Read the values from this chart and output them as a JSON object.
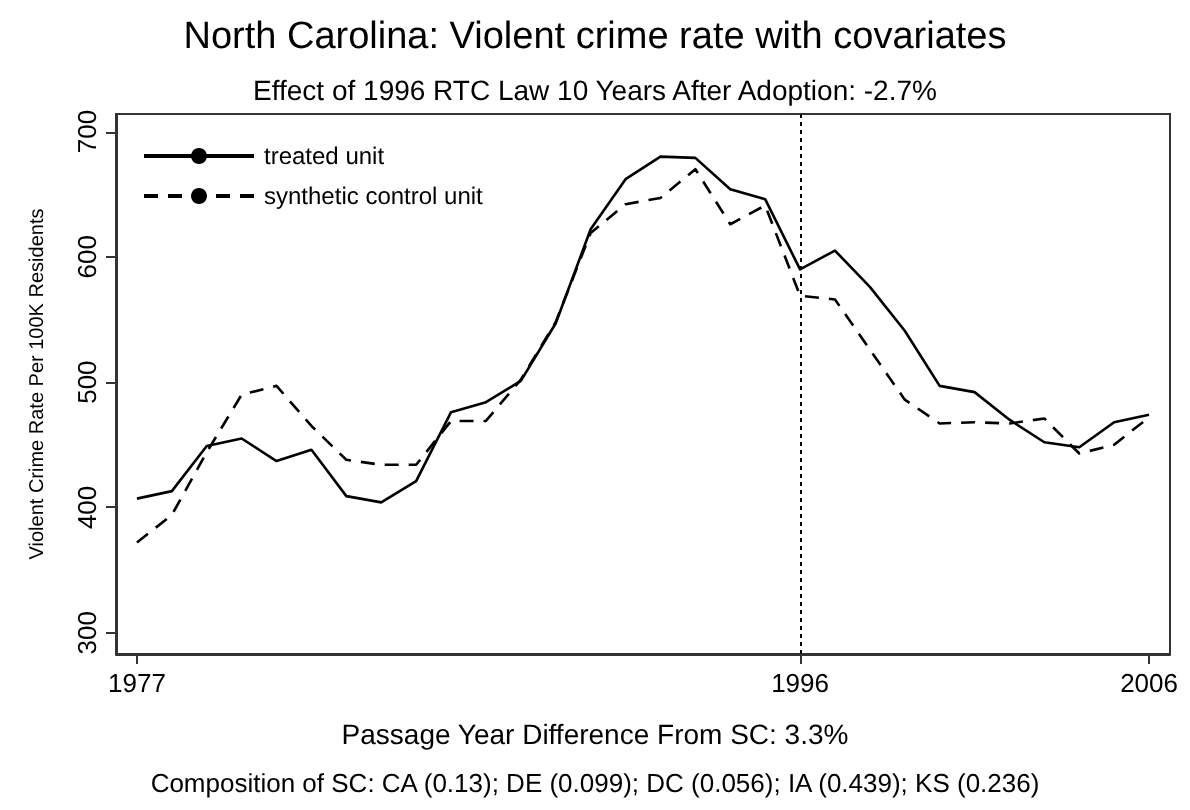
{
  "chart_data": {
    "type": "line",
    "title": "North Carolina: Violent crime rate with covariates",
    "subtitle": "Effect of 1996 RTC Law 10 Years After Adoption: -2.7%",
    "xlabel": "Passage Year Difference From SC: 3.3%",
    "ylabel": "Violent Crime Rate Per 100K Residents",
    "annotations": [
      "Composition of SC: CA (0.13); DE (0.099); DC (0.056); IA (0.439); KS (0.236)"
    ],
    "x": [
      1977,
      1978,
      1979,
      1980,
      1981,
      1982,
      1983,
      1984,
      1985,
      1986,
      1987,
      1988,
      1989,
      1990,
      1991,
      1992,
      1993,
      1994,
      1995,
      1996,
      1997,
      1998,
      1999,
      2000,
      2001,
      2002,
      2003,
      2004,
      2005,
      2006
    ],
    "series": [
      {
        "name": "treated unit",
        "color": "#000000",
        "line_style": "solid",
        "values": [
          407,
          413,
          449,
          455,
          437,
          446,
          409,
          404,
          421,
          476,
          484,
          501,
          547,
          622,
          662,
          680,
          679,
          654,
          646,
          590,
          605,
          576,
          541,
          497,
          492,
          470,
          452,
          448,
          468,
          474
        ]
      },
      {
        "name": "synthetic control unit",
        "color": "#000000",
        "line_style": "dashed",
        "values": [
          372,
          394,
          444,
          490,
          497,
          465,
          438,
          434,
          434,
          469,
          469,
          502,
          548,
          619,
          642,
          647,
          670,
          626,
          641,
          569,
          566,
          526,
          486,
          467,
          468,
          467,
          471,
          443,
          450,
          472
        ]
      }
    ],
    "xlim": [
      1976.4,
      2006.6
    ],
    "xticks": [
      1977,
      1996,
      2006
    ],
    "ylim": [
      283,
      714
    ],
    "yticks": [
      300,
      400,
      500,
      600,
      700
    ],
    "ref_lines": [
      {
        "axis": "x",
        "value": 1996,
        "color": "#000000",
        "line_style": "dotted"
      }
    ],
    "grid": false,
    "legend": "top left",
    "marker": "none"
  }
}
